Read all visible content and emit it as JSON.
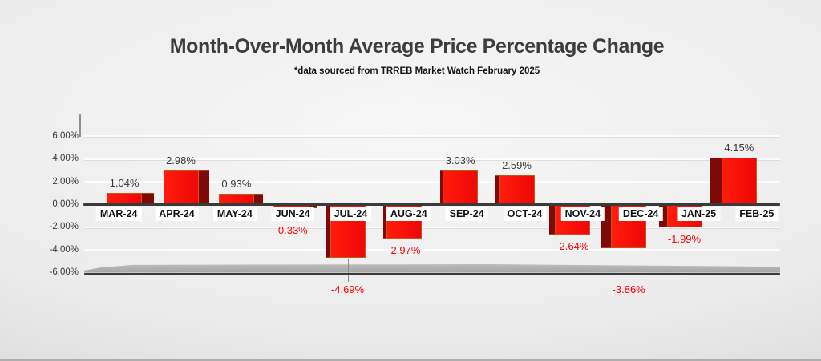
{
  "chart_data": {
    "type": "bar",
    "title": "Month-Over-Month Average Price Percentage Change",
    "subtitle": "*data sourced from TRREB Market Watch February 2025",
    "categories": [
      "MAR-24",
      "APR-24",
      "MAY-24",
      "JUN-24",
      "JUL-24",
      "AUG-24",
      "SEP-24",
      "OCT-24",
      "NOV-24",
      "DEC-24",
      "JAN-25",
      "FEB-25"
    ],
    "values": [
      1.04,
      2.98,
      0.93,
      -0.33,
      -4.69,
      -2.97,
      3.03,
      2.59,
      -2.64,
      -3.86,
      -1.99,
      4.15
    ],
    "value_labels": [
      "1.04%",
      "2.98%",
      "0.93%",
      "-0.33%",
      "-4.69%",
      "-2.97%",
      "3.03%",
      "2.59%",
      "-2.64%",
      "-3.86%",
      "-1.99%",
      "4.15%"
    ],
    "xlabel": "",
    "ylabel": "",
    "ylim": [
      -6,
      6
    ],
    "yticks": [
      6,
      4,
      2,
      0,
      -2,
      -4,
      -6
    ],
    "ytick_labels": [
      "6.00%",
      "4.00%",
      "2.00%",
      "0.00%",
      "-2.00%",
      "-4.00%",
      "-6.00%"
    ],
    "grid": true,
    "legend": false,
    "style": "3d-perspective-bars",
    "callout_indices": [
      4,
      9
    ],
    "colors": {
      "bar_fill": "#F30A0A",
      "bar_side": "#7D0A07",
      "bar_border": "#C4561A",
      "axis_line": "#3A3A3A",
      "positive_label": "#3A3A3A",
      "negative_label": "#FE0000",
      "category_label_bg": "#FFFFFF",
      "title": "#3D3D3D"
    }
  }
}
